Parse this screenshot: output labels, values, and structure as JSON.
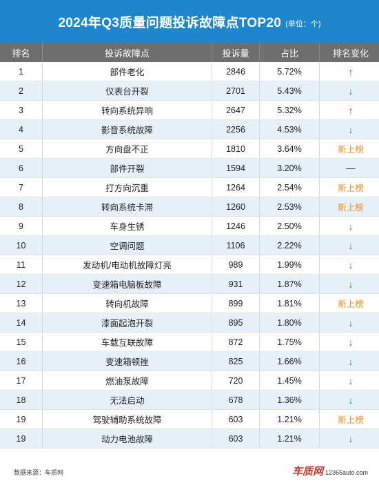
{
  "header": {
    "title": "2024年Q3质量问题投诉故障点TOP20",
    "unit": "(单位：个)"
  },
  "table": {
    "columns": [
      "排名",
      "投诉故障点",
      "投诉量",
      "占比",
      "排名变化"
    ],
    "rows": [
      {
        "rank": "1",
        "point": "部件老化",
        "count": "2846",
        "share": "5.72%",
        "change": "up"
      },
      {
        "rank": "2",
        "point": "仪表台开裂",
        "count": "2701",
        "share": "5.43%",
        "change": "down"
      },
      {
        "rank": "3",
        "point": "转向系统异响",
        "count": "2647",
        "share": "5.32%",
        "change": "up"
      },
      {
        "rank": "4",
        "point": "影音系统故障",
        "count": "2256",
        "share": "4.53%",
        "change": "down"
      },
      {
        "rank": "5",
        "point": "方向盘不正",
        "count": "1810",
        "share": "3.64%",
        "change": "new"
      },
      {
        "rank": "6",
        "point": "部件开裂",
        "count": "1594",
        "share": "3.20%",
        "change": "same"
      },
      {
        "rank": "7",
        "point": "打方向沉重",
        "count": "1264",
        "share": "2.54%",
        "change": "new"
      },
      {
        "rank": "8",
        "point": "转向系统卡滞",
        "count": "1260",
        "share": "2.53%",
        "change": "new"
      },
      {
        "rank": "9",
        "point": "车身生锈",
        "count": "1246",
        "share": "2.50%",
        "change": "down"
      },
      {
        "rank": "10",
        "point": "空调问题",
        "count": "1106",
        "share": "2.22%",
        "change": "down"
      },
      {
        "rank": "11",
        "point": "发动机/电动机故障灯亮",
        "count": "989",
        "share": "1.99%",
        "change": "down"
      },
      {
        "rank": "12",
        "point": "变速箱电脑板故障",
        "count": "931",
        "share": "1.87%",
        "change": "down"
      },
      {
        "rank": "13",
        "point": "转向机故障",
        "count": "899",
        "share": "1.81%",
        "change": "new"
      },
      {
        "rank": "14",
        "point": "漆面起泡开裂",
        "count": "895",
        "share": "1.80%",
        "change": "down"
      },
      {
        "rank": "15",
        "point": "车载互联故障",
        "count": "872",
        "share": "1.75%",
        "change": "down"
      },
      {
        "rank": "16",
        "point": "变速箱顿挫",
        "count": "825",
        "share": "1.66%",
        "change": "down"
      },
      {
        "rank": "17",
        "point": "燃油泵故障",
        "count": "720",
        "share": "1.45%",
        "change": "down"
      },
      {
        "rank": "18",
        "point": "无法启动",
        "count": "678",
        "share": "1.36%",
        "change": "down"
      },
      {
        "rank": "19",
        "point": "驾驶辅助系统故障",
        "count": "603",
        "share": "1.21%",
        "change": "new"
      },
      {
        "rank": "19",
        "point": "动力电池故障",
        "count": "603",
        "share": "1.21%",
        "change": "down"
      }
    ]
  },
  "change_labels": {
    "up": "↑",
    "down": "↓",
    "new": "新上榜",
    "same": "—"
  },
  "colors": {
    "header_bg": "#1d86cc",
    "table_head_bg": "#6e6e6e",
    "stripe": "#e6f0f8",
    "up": "#e02020",
    "down": "#1aa33a",
    "new": "#ef8c1a"
  },
  "footer": {
    "source": "数据来源：车质网",
    "brand": "车质网",
    "site": "12365auto.com"
  }
}
